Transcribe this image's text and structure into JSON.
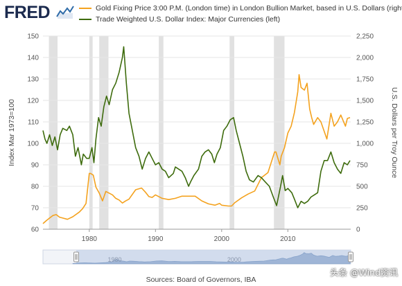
{
  "logo": {
    "text": "FRED"
  },
  "legend": [
    {
      "label": "Gold Fixing Price 3:00 P.M. (London time) in London Bullion Market, based in U.S. Dollars (right)",
      "color": "#f4a21e"
    },
    {
      "label": "Trade Weighted U.S. Dollar Index: Major Currencies (left)",
      "color": "#3d6b0c"
    }
  ],
  "sources": "Sources: Board of Governors, IBA",
  "watermark": "头条 @Wind资讯",
  "chart_data": {
    "type": "line",
    "xlabel": "",
    "ylabel_left": "Index Mar 1973=100",
    "ylabel_right": "U.S. Dollars per Troy Ounce",
    "xlim": [
      1973.0,
      2019.5
    ],
    "ylim_left": [
      60,
      150
    ],
    "ylim_right": [
      0,
      2250
    ],
    "x_ticks": [
      "1980",
      "1990",
      "2000",
      "2010"
    ],
    "y_left_ticks": [
      "60",
      "70",
      "80",
      "90",
      "100",
      "110",
      "120",
      "130",
      "140",
      "150"
    ],
    "y_right_ticks": [
      "0",
      "250",
      "500",
      "750",
      "1,000",
      "1,250",
      "1,500",
      "1,750",
      "2,000",
      "2,250"
    ],
    "recessions": [
      [
        1973.9,
        1975.2
      ],
      [
        1980.0,
        1980.5
      ],
      [
        1981.5,
        1982.9
      ],
      [
        1990.5,
        1991.2
      ],
      [
        2001.2,
        2001.9
      ],
      [
        2007.9,
        2009.5
      ]
    ],
    "series": [
      {
        "name": "Gold Fixing Price 3:00 P.M. (London time) in London Bullion Market, based in U.S. Dollars (right)",
        "axis": "right",
        "color": "#f4a21e",
        "x": [
          1973.0,
          1973.5,
          1974.0,
          1974.5,
          1975.0,
          1975.5,
          1976.0,
          1976.7,
          1977.5,
          1978.5,
          1979.0,
          1979.5,
          1980.0,
          1980.2,
          1980.6,
          1981.0,
          1981.5,
          1982.0,
          1982.5,
          1983.0,
          1983.5,
          1984.0,
          1984.5,
          1985.0,
          1985.5,
          1986.0,
          1987.0,
          1987.9,
          1988.5,
          1989.0,
          1989.5,
          1990.0,
          1991.0,
          1992.0,
          1993.0,
          1994.0,
          1995.0,
          1996.0,
          1997.0,
          1998.0,
          1999.0,
          1999.7,
          2000.0,
          2001.0,
          2001.5,
          2002.0,
          2003.0,
          2004.0,
          2005.0,
          2006.0,
          2006.5,
          2007.0,
          2008.0,
          2008.2,
          2008.8,
          2009.0,
          2009.5,
          2010.0,
          2010.5,
          2011.0,
          2011.5,
          2011.7,
          2012.0,
          2012.5,
          2012.9,
          2013.3,
          2013.6,
          2013.9,
          2014.5,
          2015.0,
          2015.9,
          2016.5,
          2017.0,
          2017.5,
          2018.0,
          2018.7,
          2019.0,
          2019.4
        ],
        "y": [
          65,
          100,
          130,
          160,
          170,
          140,
          130,
          115,
          145,
          200,
          240,
          300,
          650,
          650,
          630,
          490,
          420,
          330,
          440,
          420,
          400,
          360,
          340,
          305,
          330,
          350,
          460,
          480,
          430,
          380,
          370,
          400,
          360,
          345,
          360,
          385,
          385,
          385,
          330,
          295,
          280,
          300,
          280,
          270,
          270,
          310,
          365,
          410,
          445,
          600,
          630,
          660,
          900,
          900,
          750,
          850,
          950,
          1120,
          1200,
          1360,
          1600,
          1800,
          1650,
          1620,
          1700,
          1400,
          1300,
          1220,
          1300,
          1250,
          1050,
          1350,
          1200,
          1250,
          1330,
          1200,
          1290,
          1300
        ]
      },
      {
        "name": "Trade Weighted U.S. Dollar Index: Major Currencies (left)",
        "axis": "left",
        "color": "#3d6b0c",
        "x": [
          1973.0,
          1973.3,
          1973.6,
          1974.0,
          1974.4,
          1974.8,
          1975.2,
          1975.6,
          1976.0,
          1976.6,
          1977.0,
          1977.5,
          1977.9,
          1978.3,
          1978.8,
          1979.1,
          1979.6,
          1980.0,
          1980.4,
          1980.7,
          1981.0,
          1981.4,
          1981.8,
          1982.2,
          1982.6,
          1983.0,
          1983.5,
          1984.0,
          1984.5,
          1985.0,
          1985.2,
          1985.6,
          1986.0,
          1986.5,
          1987.0,
          1987.5,
          1988.0,
          1988.5,
          1989.0,
          1989.5,
          1990.0,
          1990.5,
          1991.0,
          1991.5,
          1992.0,
          1992.7,
          1993.0,
          1993.5,
          1994.0,
          1994.5,
          1995.0,
          1995.3,
          1995.8,
          1996.5,
          1997.0,
          1997.5,
          1998.0,
          1998.5,
          1998.9,
          1999.3,
          1999.8,
          2000.3,
          2000.8,
          2001.3,
          2001.8,
          2002.2,
          2002.7,
          2003.2,
          2003.7,
          2004.2,
          2004.8,
          2005.5,
          2006.0,
          2006.6,
          2007.2,
          2007.8,
          2008.3,
          2008.9,
          2009.2,
          2009.6,
          2010.0,
          2010.6,
          2011.0,
          2011.5,
          2012.0,
          2012.5,
          2013.0,
          2013.5,
          2014.0,
          2014.5,
          2015.0,
          2015.5,
          2016.0,
          2016.5,
          2017.0,
          2017.5,
          2018.0,
          2018.5,
          2019.0,
          2019.4
        ],
        "y": [
          106,
          102,
          100,
          104,
          99,
          103,
          97,
          104,
          107,
          106,
          108,
          104,
          94,
          98,
          90,
          95,
          93,
          93,
          98,
          91,
          102,
          112,
          108,
          117,
          122,
          118,
          125,
          128,
          133,
          140,
          145,
          128,
          114,
          106,
          98,
          94,
          88,
          93,
          96,
          93,
          90,
          91,
          88,
          87,
          84,
          86,
          89,
          88,
          87,
          84,
          80,
          82,
          85,
          88,
          94,
          96,
          97,
          95,
          91,
          95,
          98,
          106,
          108,
          111,
          112,
          106,
          100,
          94,
          87,
          83,
          82,
          85,
          84,
          82,
          80,
          75,
          71,
          80,
          85,
          78,
          79,
          77,
          74,
          70,
          73,
          72,
          73,
          75,
          76,
          77,
          87,
          92,
          92,
          96,
          91,
          88,
          86,
          91,
          90,
          92
        ]
      }
    ]
  }
}
